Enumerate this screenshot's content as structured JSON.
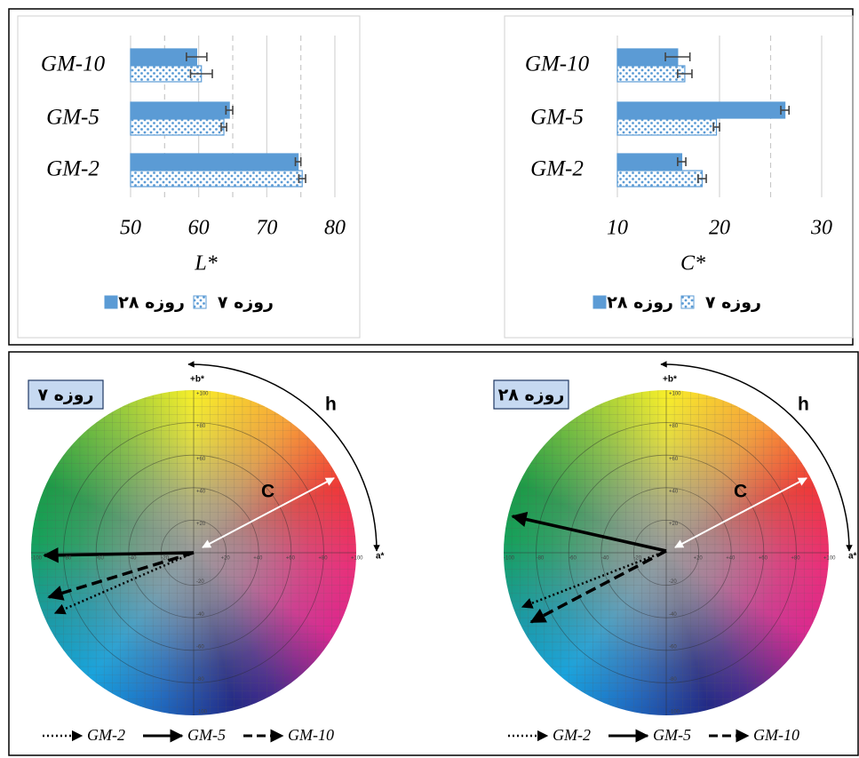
{
  "chart_data": [
    {
      "type": "hbar",
      "xlabel": "L*",
      "categories": [
        "GM-10",
        "GM-5",
        "GM-2"
      ],
      "series": [
        {
          "name": "۲۸ روزه",
          "color": "#5b9bd5",
          "pattern": "solid",
          "values": [
            59.7,
            64.5,
            74.6
          ],
          "errors": [
            1.5,
            0.5,
            0.4
          ]
        },
        {
          "name": "۷ روزه",
          "color": "#5b9bd5",
          "pattern": "dots",
          "values": [
            60.4,
            63.7,
            75.2
          ],
          "errors": [
            1.6,
            0.4,
            0.5
          ]
        }
      ],
      "xlim": [
        50,
        80
      ],
      "xticks": [
        50,
        60,
        70,
        80
      ],
      "minor_grid": [
        55,
        65,
        75
      ],
      "grid": true,
      "legend": "bottom"
    },
    {
      "type": "hbar",
      "xlabel": "C*",
      "categories": [
        "GM-10",
        "GM-5",
        "GM-2"
      ],
      "series": [
        {
          "name": "۲۸ روزه",
          "color": "#5b9bd5",
          "pattern": "solid",
          "values": [
            15.9,
            26.4,
            16.3
          ],
          "errors": [
            1.2,
            0.4,
            0.4
          ]
        },
        {
          "name": "۷ روزه",
          "color": "#5b9bd5",
          "pattern": "dots",
          "values": [
            16.6,
            19.7,
            18.3
          ],
          "errors": [
            0.7,
            0.3,
            0.4
          ]
        }
      ],
      "xlim": [
        10,
        30
      ],
      "xticks": [
        10,
        20,
        30
      ],
      "minor_grid": [
        25
      ],
      "grid": true,
      "legend": "bottom"
    }
  ],
  "wheels": [
    {
      "label": "۷ روزه",
      "hue": "h",
      "chroma": "C",
      "b_axis": "+b*",
      "a_axis": "a*",
      "pos_scale": [
        "+20",
        "+40",
        "+60",
        "+80",
        "+100"
      ],
      "neg_scale": [
        "-20",
        "-40",
        "-60",
        "-80",
        "-100"
      ],
      "legend": [
        {
          "name": "GM-2",
          "style": "dotted"
        },
        {
          "name": "GM-5",
          "style": "solid"
        },
        {
          "name": "GM-10",
          "style": "dashed"
        }
      ]
    },
    {
      "label": "۲۸ روزه",
      "hue": "h",
      "chroma": "C",
      "b_axis": "+b*",
      "a_axis": "a*",
      "pos_scale": [
        "+20",
        "+40",
        "+60",
        "+80",
        "+100"
      ],
      "neg_scale": [
        "-20",
        "-40",
        "-60",
        "-80",
        "-100"
      ],
      "legend": [
        {
          "name": "GM-2",
          "style": "dotted"
        },
        {
          "name": "GM-5",
          "style": "solid"
        },
        {
          "name": "GM-10",
          "style": "dashed"
        }
      ]
    }
  ]
}
